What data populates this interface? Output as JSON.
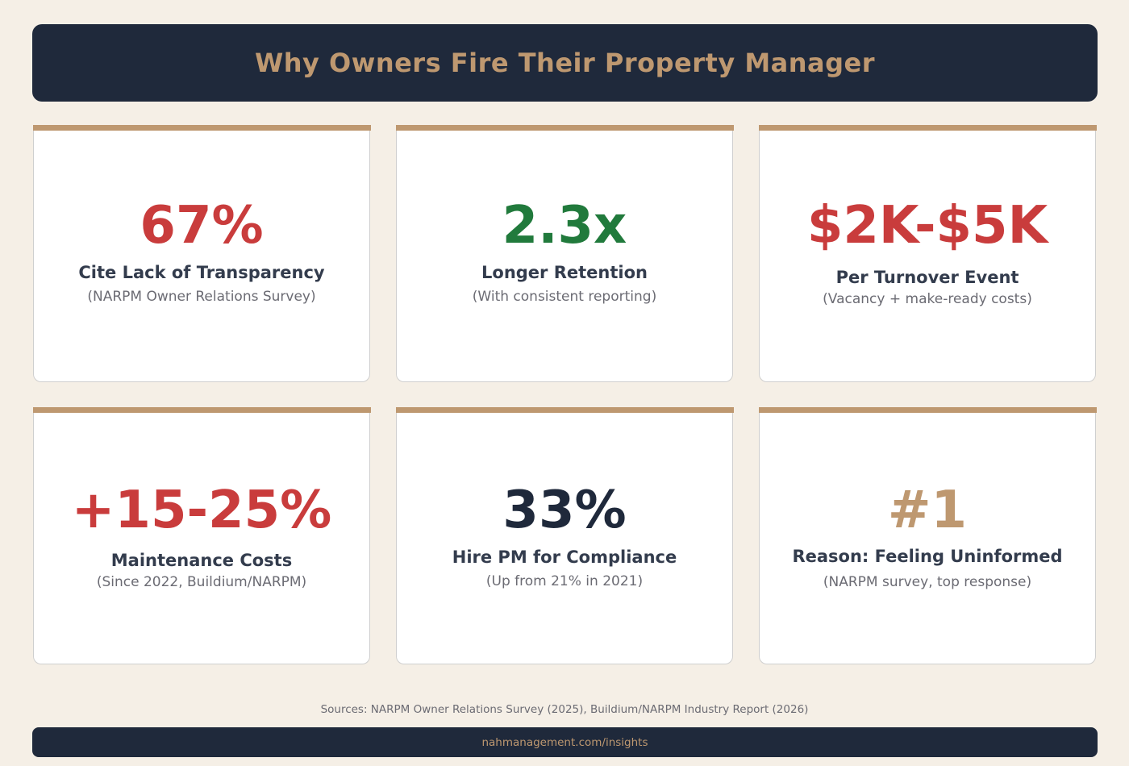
{
  "header": {
    "title": "Why Owners Fire Their Property Manager"
  },
  "colors": {
    "background": "#f5efe6",
    "navy": "#1f293b",
    "gold": "#be9870",
    "red": "#c93c3c",
    "green": "#217a3c",
    "text_dark": "#333c4d",
    "text_muted": "#6b6b73"
  },
  "cards": [
    {
      "value": "67%",
      "value_color": "#c93c3c",
      "label": "Cite Lack of Transparency",
      "source": "(NARPM Owner Relations Survey)"
    },
    {
      "value": "2.3x",
      "value_color": "#217a3c",
      "label": "Longer Retention",
      "source": "(With consistent reporting)"
    },
    {
      "value": "$2K-$5K",
      "value_color": "#c93c3c",
      "label": "Per Turnover Event",
      "source": "(Vacancy + make-ready costs)"
    },
    {
      "value": "+15-25%",
      "value_color": "#c93c3c",
      "label": "Maintenance Costs",
      "source": "(Since 2022, Buildium/NARPM)"
    },
    {
      "value": "33%",
      "value_color": "#1f293b",
      "label": "Hire PM for Compliance",
      "source": "(Up from 21% in 2021)"
    },
    {
      "value": "#1",
      "value_color": "#be9870",
      "label": "Reason: Feeling Uninformed",
      "source": "(NARPM survey, top response)"
    }
  ],
  "footer": {
    "sources": "Sources: NARPM Owner Relations Survey (2025), Buildium/NARPM Industry Report (2026)",
    "url": "nahmanagement.com/insights"
  }
}
